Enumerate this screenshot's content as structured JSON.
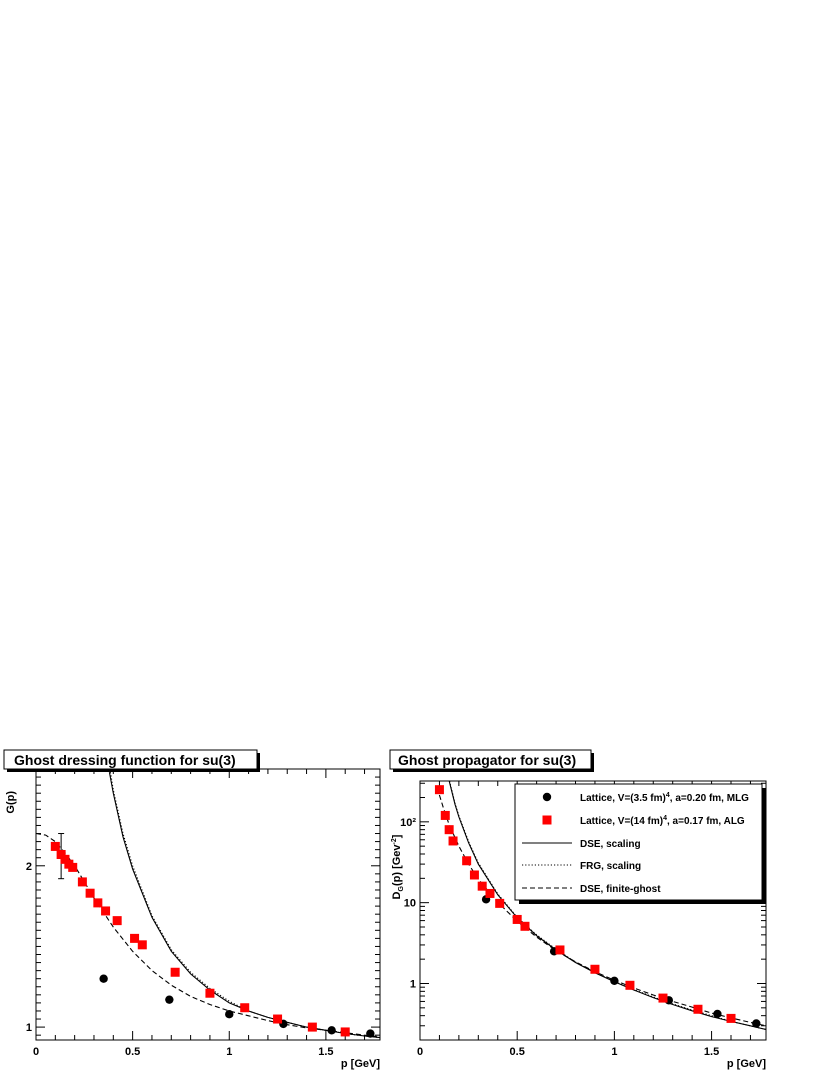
{
  "chart_data": [
    {
      "type": "scatter",
      "title": "Ghost dressing function for su(3)",
      "xlabel": "p [GeV]",
      "ylabel": "G(p)",
      "xlim": [
        0,
        1.78
      ],
      "ylim": [
        0.92,
        2.6
      ],
      "yscale": "linear",
      "x_ticks": [
        "0",
        "0.5",
        "1",
        "1.5"
      ],
      "x_tick_values": [
        0,
        0.5,
        1,
        1.5
      ],
      "y_ticks": [
        "1",
        "2"
      ],
      "y_tick_values": [
        1,
        2
      ],
      "grid": false,
      "series": [
        {
          "name": "Lattice, V=(3.5 fm)^4, a=0.20 fm, MLG",
          "marker": "circle",
          "color": "#000000",
          "x": [
            0.35,
            0.69,
            1.0,
            1.28,
            1.53,
            1.73
          ],
          "y": [
            1.3,
            1.17,
            1.08,
            1.02,
            0.98,
            0.96
          ]
        },
        {
          "name": "Lattice, V=(14 fm)^4, a=0.17 fm, ALG",
          "marker": "square",
          "color": "#ff0000",
          "x": [
            0.1,
            0.13,
            0.15,
            0.17,
            0.19,
            0.24,
            0.28,
            0.32,
            0.36,
            0.42,
            0.51,
            0.55,
            0.72,
            0.9,
            1.08,
            1.25,
            1.43,
            1.6
          ],
          "y": [
            2.12,
            2.07,
            2.04,
            2.01,
            1.99,
            1.9,
            1.83,
            1.77,
            1.72,
            1.66,
            1.55,
            1.51,
            1.34,
            1.21,
            1.12,
            1.05,
            1.0,
            0.97
          ],
          "error_x": [
            0.13
          ],
          "error_y": [
            [
              1.92,
              2.2
            ]
          ]
        },
        {
          "name": "DSE, scaling",
          "style": "solid",
          "color": "#000000",
          "x": [
            0.38,
            0.4,
            0.45,
            0.5,
            0.6,
            0.7,
            0.8,
            0.9,
            1.0,
            1.1,
            1.2,
            1.3,
            1.4,
            1.5,
            1.6,
            1.7,
            1.78
          ],
          "y": [
            2.58,
            2.45,
            2.18,
            1.98,
            1.68,
            1.47,
            1.33,
            1.23,
            1.15,
            1.1,
            1.06,
            1.03,
            1.0,
            0.98,
            0.96,
            0.945,
            0.935
          ]
        },
        {
          "name": "FRG, scaling",
          "style": "dotted",
          "color": "#000000",
          "x": [
            0.385,
            0.4,
            0.45,
            0.5,
            0.6,
            0.7,
            0.8,
            0.9,
            1.0,
            1.1,
            1.2,
            1.3,
            1.4,
            1.5,
            1.6,
            1.7,
            1.78
          ],
          "y": [
            2.58,
            2.47,
            2.2,
            2.0,
            1.69,
            1.48,
            1.34,
            1.24,
            1.16,
            1.1,
            1.06,
            1.03,
            1.0,
            0.98,
            0.96,
            0.945,
            0.935
          ]
        },
        {
          "name": "DSE, finite-ghost",
          "style": "dashed",
          "color": "#000000",
          "x": [
            0.0,
            0.05,
            0.1,
            0.15,
            0.2,
            0.3,
            0.4,
            0.5,
            0.6,
            0.7,
            0.8,
            0.9,
            1.0,
            1.1,
            1.2,
            1.3,
            1.4,
            1.5,
            1.6,
            1.7,
            1.78
          ],
          "y": [
            2.2,
            2.19,
            2.15,
            2.08,
            2.0,
            1.8,
            1.62,
            1.47,
            1.35,
            1.26,
            1.19,
            1.14,
            1.1,
            1.07,
            1.04,
            1.015,
            0.995,
            0.98,
            0.965,
            0.95,
            0.94
          ]
        }
      ]
    },
    {
      "type": "scatter",
      "title": "Ghost propagator for su(3)",
      "xlabel": "p [GeV]",
      "ylabel": "D_G(p) [Gev^-2]",
      "xlim": [
        0,
        1.78
      ],
      "ylim": [
        0.2,
        320
      ],
      "yscale": "log",
      "x_ticks": [
        "0",
        "0.5",
        "1",
        "1.5"
      ],
      "x_tick_values": [
        0,
        0.5,
        1,
        1.5
      ],
      "y_ticks": [
        "1",
        "10",
        "10²"
      ],
      "y_tick_values": [
        1,
        10,
        100
      ],
      "grid": false,
      "legend_position": "top-right",
      "series": [
        {
          "name": "Lattice, V=(3.5 fm)^4, a=0.20 fm, MLG",
          "marker": "circle",
          "color": "#000000",
          "x": [
            0.34,
            0.69,
            1.0,
            1.28,
            1.53,
            1.73
          ],
          "y": [
            11,
            2.5,
            1.08,
            0.62,
            0.42,
            0.32
          ]
        },
        {
          "name": "Lattice, V=(14 fm)^4, a=0.17 fm, ALG",
          "marker": "square",
          "color": "#ff0000",
          "x": [
            0.1,
            0.13,
            0.15,
            0.17,
            0.24,
            0.28,
            0.32,
            0.36,
            0.41,
            0.5,
            0.54,
            0.72,
            0.9,
            1.08,
            1.25,
            1.43,
            1.6
          ],
          "y": [
            250,
            120,
            80,
            58,
            33,
            22,
            16,
            13,
            9.8,
            6.2,
            5.1,
            2.6,
            1.5,
            0.95,
            0.66,
            0.48,
            0.37
          ]
        },
        {
          "name": "DSE, scaling",
          "style": "solid",
          "color": "#000000",
          "x": [
            0.15,
            0.18,
            0.2,
            0.25,
            0.3,
            0.4,
            0.5,
            0.6,
            0.7,
            0.8,
            0.9,
            1.0,
            1.1,
            1.2,
            1.3,
            1.4,
            1.5,
            1.6,
            1.7,
            1.78
          ],
          "y": [
            320,
            165,
            115,
            55,
            30,
            12.5,
            6.5,
            3.9,
            2.6,
            1.82,
            1.36,
            1.05,
            0.83,
            0.67,
            0.55,
            0.46,
            0.39,
            0.34,
            0.3,
            0.27
          ]
        },
        {
          "name": "FRG, scaling",
          "style": "dotted",
          "color": "#000000",
          "x": [
            0.152,
            0.18,
            0.2,
            0.25,
            0.3,
            0.4,
            0.5,
            0.6,
            0.7,
            0.8,
            0.9,
            1.0,
            1.1,
            1.2,
            1.3,
            1.4,
            1.5,
            1.6,
            1.7,
            1.78
          ],
          "y": [
            320,
            170,
            118,
            57,
            31,
            12.8,
            6.6,
            4.0,
            2.65,
            1.84,
            1.37,
            1.06,
            0.84,
            0.68,
            0.56,
            0.47,
            0.4,
            0.34,
            0.3,
            0.27
          ]
        },
        {
          "name": "DSE, finite-ghost",
          "style": "dashed",
          "color": "#000000",
          "x": [
            0.1,
            0.12,
            0.15,
            0.2,
            0.25,
            0.3,
            0.4,
            0.5,
            0.6,
            0.7,
            0.8,
            0.9,
            1.0,
            1.1,
            1.2,
            1.3,
            1.4,
            1.5,
            1.6,
            1.7,
            1.78
          ],
          "y": [
            215,
            150,
            92,
            50,
            30,
            19.5,
            10.1,
            5.9,
            3.75,
            2.55,
            1.85,
            1.4,
            1.1,
            0.88,
            0.72,
            0.6,
            0.51,
            0.43,
            0.375,
            0.33,
            0.3
          ]
        }
      ]
    }
  ],
  "legend": {
    "entries": [
      {
        "pre": "Lattice, V=(3.5 fm)",
        "sup": "4",
        "post": ", a=0.20 fm, MLG"
      },
      {
        "pre": "Lattice, V=(14 fm)",
        "sup": "4",
        "post": ", a=0.17 fm, ALG"
      },
      {
        "pre": "DSE, scaling",
        "sup": "",
        "post": ""
      },
      {
        "pre": "FRG, scaling",
        "sup": "",
        "post": ""
      },
      {
        "pre": "DSE, finite-ghost",
        "sup": "",
        "post": ""
      }
    ]
  },
  "right_ylabel": {
    "main": "D",
    "sub": "G",
    "mid": "(p) [Gev",
    "sup": "-2",
    "end": "]"
  }
}
